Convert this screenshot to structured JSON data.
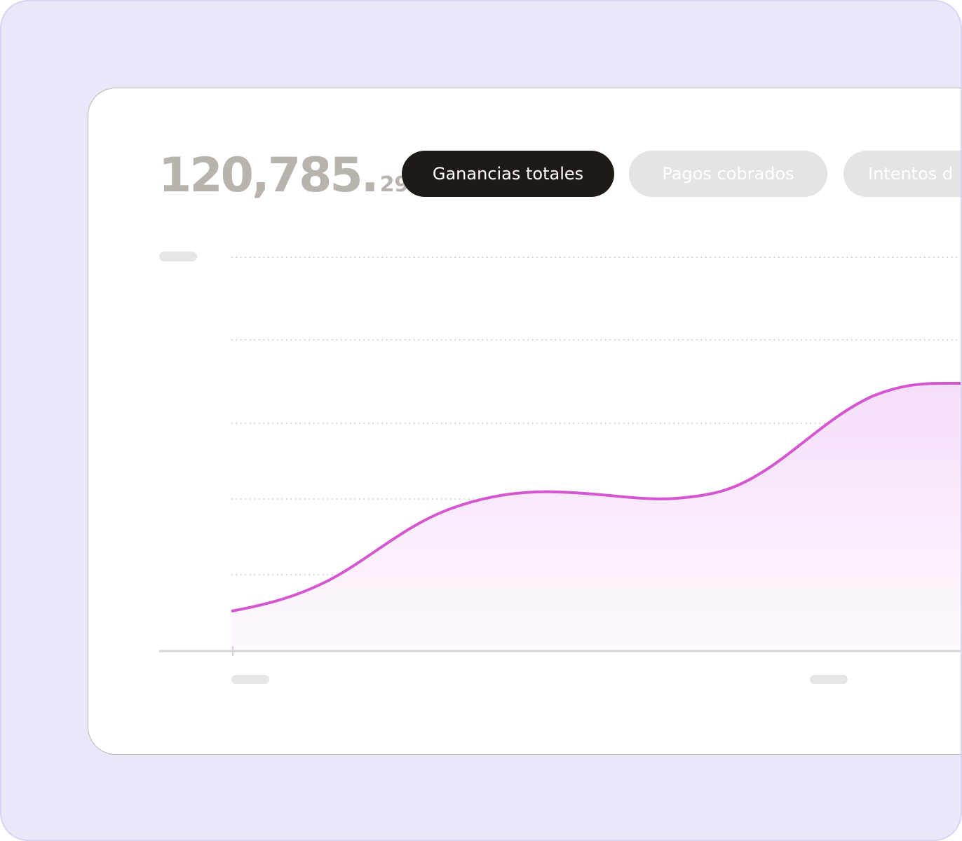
{
  "header": {
    "amount_main": "120,785.",
    "amount_cents": "29"
  },
  "tabs": [
    "Ganancias totales",
    "Pagos cobrados",
    "Intentos d"
  ]
}
